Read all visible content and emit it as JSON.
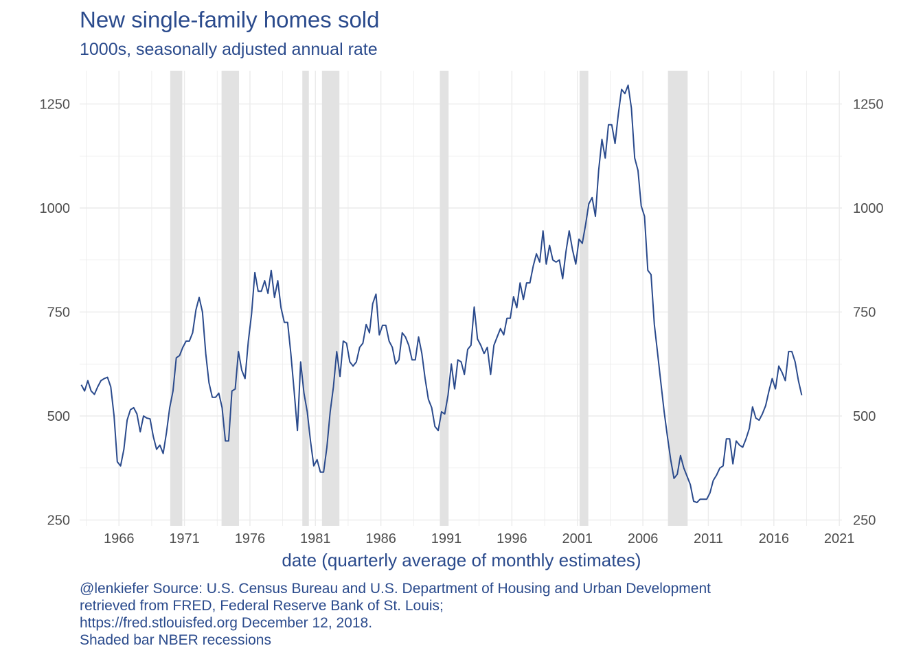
{
  "title": "New single-family homes sold",
  "subtitle": "1000s, seasonally adjusted annual rate",
  "caption": {
    "line1": "@lenkiefer Source: U.S. Census Bureau and U.S. Department of Housing and Urban Development",
    "line2": "retrieved from FRED, Federal Reserve Bank of St. Louis;",
    "line3": "https://fred.stlouisfed.org December 12, 2018.",
    "line4": "Shaded bar NBER recessions"
  },
  "colors": {
    "line": "#2a4a8c",
    "text": "#2a4a8c",
    "recession": "#e2e2e2",
    "grid": "#ebebeb",
    "tick_label": "#4d4d4d"
  },
  "chart_data": {
    "type": "line",
    "title": "New single-family homes sold",
    "subtitle": "1000s, seasonally adjusted annual rate",
    "xlabel": "date (quarterly average of monthly estimates)",
    "ylabel": "",
    "x_range": [
      "1963-01-01",
      "2021-01-01"
    ],
    "ylim": [
      250,
      1330
    ],
    "y_ticks": [
      250,
      500,
      750,
      1000,
      1250
    ],
    "x_ticks": [
      "1966",
      "1971",
      "1976",
      "1981",
      "1986",
      "1991",
      "1996",
      "2001",
      "2006",
      "2011",
      "2016",
      "2021"
    ],
    "y_axis_duplicated_right": true,
    "grid": true,
    "recessions": [
      {
        "start": "1969-12-01",
        "end": "1970-11-01"
      },
      {
        "start": "1973-11-01",
        "end": "1975-03-01"
      },
      {
        "start": "1980-01-01",
        "end": "1980-07-01"
      },
      {
        "start": "1981-07-01",
        "end": "1982-11-01"
      },
      {
        "start": "1990-07-01",
        "end": "1991-03-01"
      },
      {
        "start": "2001-03-01",
        "end": "2001-11-01"
      },
      {
        "start": "2007-12-01",
        "end": "2009-06-01"
      }
    ],
    "series": [
      {
        "points": [
          [
            "1963-Q1",
            575
          ],
          [
            "1963-Q2",
            560
          ],
          [
            "1963-Q3",
            585
          ],
          [
            "1963-Q4",
            560
          ],
          [
            "1964-Q1",
            552
          ],
          [
            "1964-Q2",
            570
          ],
          [
            "1964-Q3",
            585
          ],
          [
            "1964-Q4",
            590
          ],
          [
            "1965-Q1",
            593
          ],
          [
            "1965-Q2",
            570
          ],
          [
            "1965-Q3",
            500
          ],
          [
            "1965-Q4",
            390
          ],
          [
            "1966-Q1",
            380
          ],
          [
            "1966-Q2",
            420
          ],
          [
            "1966-Q3",
            490
          ],
          [
            "1966-Q4",
            515
          ],
          [
            "1967-Q1",
            520
          ],
          [
            "1967-Q2",
            505
          ],
          [
            "1967-Q3",
            462
          ],
          [
            "1967-Q4",
            500
          ],
          [
            "1968-Q1",
            495
          ],
          [
            "1968-Q2",
            493
          ],
          [
            "1968-Q3",
            450
          ],
          [
            "1968-Q4",
            420
          ],
          [
            "1969-Q1",
            430
          ],
          [
            "1969-Q2",
            410
          ],
          [
            "1969-Q3",
            460
          ],
          [
            "1969-Q4",
            520
          ],
          [
            "1970-Q1",
            560
          ],
          [
            "1970-Q2",
            640
          ],
          [
            "1970-Q3",
            645
          ],
          [
            "1970-Q4",
            665
          ],
          [
            "1971-Q1",
            680
          ],
          [
            "1971-Q2",
            680
          ],
          [
            "1971-Q3",
            700
          ],
          [
            "1971-Q4",
            755
          ],
          [
            "1972-Q1",
            785
          ],
          [
            "1972-Q2",
            750
          ],
          [
            "1972-Q3",
            650
          ],
          [
            "1972-Q4",
            580
          ],
          [
            "1973-Q1",
            545
          ],
          [
            "1973-Q2",
            545
          ],
          [
            "1973-Q3",
            555
          ],
          [
            "1973-Q4",
            520
          ],
          [
            "1974-Q1",
            440
          ],
          [
            "1974-Q2",
            440
          ],
          [
            "1974-Q3",
            560
          ],
          [
            "1974-Q4",
            565
          ],
          [
            "1975-Q1",
            655
          ],
          [
            "1975-Q2",
            610
          ],
          [
            "1975-Q3",
            590
          ],
          [
            "1975-Q4",
            680
          ],
          [
            "1976-Q1",
            745
          ],
          [
            "1976-Q2",
            845
          ],
          [
            "1976-Q3",
            800
          ],
          [
            "1976-Q4",
            800
          ],
          [
            "1977-Q1",
            825
          ],
          [
            "1977-Q2",
            795
          ],
          [
            "1977-Q3",
            850
          ],
          [
            "1977-Q4",
            785
          ],
          [
            "1978-Q1",
            825
          ],
          [
            "1978-Q2",
            760
          ],
          [
            "1978-Q3",
            725
          ],
          [
            "1978-Q4",
            725
          ],
          [
            "1979-Q1",
            650
          ],
          [
            "1979-Q2",
            560
          ],
          [
            "1979-Q3",
            465
          ],
          [
            "1979-Q4",
            630
          ],
          [
            "1980-Q1",
            555
          ],
          [
            "1980-Q2",
            510
          ],
          [
            "1980-Q3",
            440
          ],
          [
            "1980-Q4",
            380
          ],
          [
            "1981-Q1",
            395
          ],
          [
            "1981-Q2",
            365
          ],
          [
            "1981-Q3",
            365
          ],
          [
            "1981-Q4",
            425
          ],
          [
            "1982-Q1",
            510
          ],
          [
            "1982-Q2",
            570
          ],
          [
            "1982-Q3",
            655
          ],
          [
            "1982-Q4",
            595
          ],
          [
            "1983-Q1",
            680
          ],
          [
            "1983-Q2",
            675
          ],
          [
            "1983-Q3",
            630
          ],
          [
            "1983-Q4",
            620
          ],
          [
            "1984-Q1",
            630
          ],
          [
            "1984-Q2",
            665
          ],
          [
            "1984-Q3",
            675
          ],
          [
            "1984-Q4",
            720
          ],
          [
            "1985-Q1",
            700
          ],
          [
            "1985-Q2",
            770
          ],
          [
            "1985-Q3",
            793
          ],
          [
            "1985-Q4",
            695
          ],
          [
            "1986-Q1",
            718
          ],
          [
            "1986-Q2",
            718
          ],
          [
            "1986-Q3",
            680
          ],
          [
            "1986-Q4",
            665
          ],
          [
            "1987-Q1",
            625
          ],
          [
            "1987-Q2",
            635
          ],
          [
            "1987-Q3",
            700
          ],
          [
            "1987-Q4",
            690
          ],
          [
            "1988-Q1",
            670
          ],
          [
            "1988-Q2",
            635
          ],
          [
            "1988-Q3",
            635
          ],
          [
            "1988-Q4",
            690
          ],
          [
            "1989-Q1",
            650
          ],
          [
            "1989-Q2",
            590
          ],
          [
            "1989-Q3",
            540
          ],
          [
            "1989-Q4",
            520
          ],
          [
            "1990-Q1",
            475
          ],
          [
            "1990-Q2",
            465
          ],
          [
            "1990-Q3",
            510
          ],
          [
            "1990-Q4",
            505
          ],
          [
            "1991-Q1",
            550
          ],
          [
            "1991-Q2",
            625
          ],
          [
            "1991-Q3",
            565
          ],
          [
            "1991-Q4",
            635
          ],
          [
            "1992-Q1",
            630
          ],
          [
            "1992-Q2",
            600
          ],
          [
            "1992-Q3",
            660
          ],
          [
            "1992-Q4",
            670
          ],
          [
            "1993-Q1",
            762
          ],
          [
            "1993-Q2",
            685
          ],
          [
            "1993-Q3",
            670
          ],
          [
            "1993-Q4",
            650
          ],
          [
            "1994-Q1",
            665
          ],
          [
            "1994-Q2",
            600
          ],
          [
            "1994-Q3",
            670
          ],
          [
            "1994-Q4",
            690
          ],
          [
            "1995-Q1",
            710
          ],
          [
            "1995-Q2",
            695
          ],
          [
            "1995-Q3",
            735
          ],
          [
            "1995-Q4",
            735
          ],
          [
            "1996-Q1",
            787
          ],
          [
            "1996-Q2",
            760
          ],
          [
            "1996-Q3",
            820
          ],
          [
            "1996-Q4",
            780
          ],
          [
            "1997-Q1",
            820
          ],
          [
            "1997-Q2",
            820
          ],
          [
            "1997-Q3",
            860
          ],
          [
            "1997-Q4",
            890
          ],
          [
            "1998-Q1",
            870
          ],
          [
            "1998-Q2",
            945
          ],
          [
            "1998-Q3",
            865
          ],
          [
            "1998-Q4",
            910
          ],
          [
            "1999-Q1",
            875
          ],
          [
            "1999-Q2",
            870
          ],
          [
            "1999-Q3",
            875
          ],
          [
            "1999-Q4",
            830
          ],
          [
            "2000-Q1",
            895
          ],
          [
            "2000-Q2",
            945
          ],
          [
            "2000-Q3",
            900
          ],
          [
            "2000-Q4",
            865
          ],
          [
            "2001-Q1",
            925
          ],
          [
            "2001-Q2",
            915
          ],
          [
            "2001-Q3",
            960
          ],
          [
            "2001-Q4",
            1010
          ],
          [
            "2002-Q1",
            1025
          ],
          [
            "2002-Q2",
            980
          ],
          [
            "2002-Q3",
            1090
          ],
          [
            "2002-Q4",
            1165
          ],
          [
            "2003-Q1",
            1120
          ],
          [
            "2003-Q2",
            1200
          ],
          [
            "2003-Q3",
            1200
          ],
          [
            "2003-Q4",
            1155
          ],
          [
            "2004-Q1",
            1225
          ],
          [
            "2004-Q2",
            1285
          ],
          [
            "2004-Q3",
            1275
          ],
          [
            "2004-Q4",
            1295
          ],
          [
            "2005-Q1",
            1240
          ],
          [
            "2005-Q2",
            1120
          ],
          [
            "2005-Q3",
            1090
          ],
          [
            "2005-Q4",
            1005
          ],
          [
            "2006-Q1",
            980
          ],
          [
            "2006-Q2",
            850
          ],
          [
            "2006-Q3",
            840
          ],
          [
            "2006-Q4",
            720
          ],
          [
            "2007-Q1",
            650
          ],
          [
            "2007-Q2",
            580
          ],
          [
            "2007-Q3",
            510
          ],
          [
            "2007-Q4",
            450
          ],
          [
            "2008-Q1",
            395
          ],
          [
            "2008-Q2",
            350
          ],
          [
            "2008-Q3",
            360
          ],
          [
            "2008-Q4",
            405
          ],
          [
            "2009-Q1",
            375
          ],
          [
            "2009-Q2",
            355
          ],
          [
            "2009-Q3",
            335
          ],
          [
            "2009-Q4",
            295
          ],
          [
            "2010-Q1",
            292
          ],
          [
            "2010-Q2",
            300
          ],
          [
            "2010-Q3",
            300
          ],
          [
            "2010-Q4",
            300
          ],
          [
            "2011-Q1",
            315
          ],
          [
            "2011-Q2",
            345
          ],
          [
            "2011-Q3",
            358
          ],
          [
            "2011-Q4",
            375
          ],
          [
            "2012-Q1",
            380
          ],
          [
            "2012-Q2",
            445
          ],
          [
            "2012-Q3",
            445
          ],
          [
            "2012-Q4",
            385
          ],
          [
            "2013-Q1",
            440
          ],
          [
            "2013-Q2",
            430
          ],
          [
            "2013-Q3",
            425
          ],
          [
            "2013-Q4",
            445
          ],
          [
            "2014-Q1",
            470
          ],
          [
            "2014-Q2",
            522
          ],
          [
            "2014-Q3",
            495
          ],
          [
            "2014-Q4",
            490
          ],
          [
            "2015-Q1",
            505
          ],
          [
            "2015-Q2",
            525
          ],
          [
            "2015-Q3",
            560
          ],
          [
            "2015-Q4",
            590
          ],
          [
            "2016-Q1",
            565
          ],
          [
            "2016-Q2",
            620
          ],
          [
            "2016-Q3",
            605
          ],
          [
            "2016-Q4",
            585
          ],
          [
            "2017-Q1",
            655
          ],
          [
            "2017-Q2",
            655
          ],
          [
            "2017-Q3",
            630
          ],
          [
            "2017-Q4",
            585
          ],
          [
            "2018-Q1",
            550
          ]
        ]
      }
    ]
  }
}
